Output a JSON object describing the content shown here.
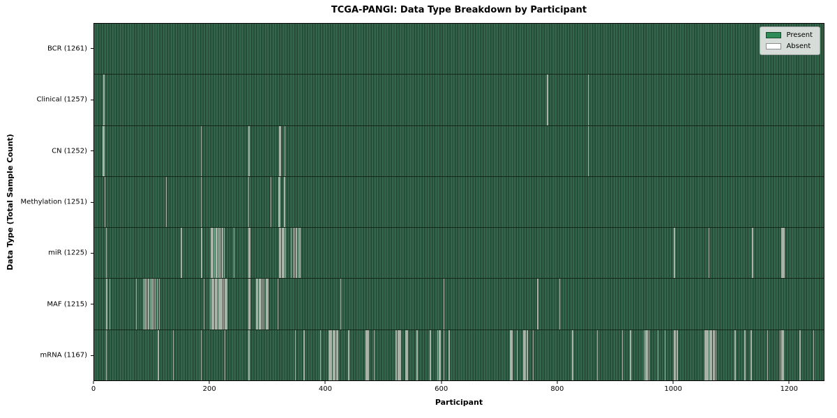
{
  "chart_data": {
    "type": "heatmap",
    "title": "TCGA-PANGI: Data Type Breakdown by Participant",
    "xlabel": "Participant",
    "ylabel": "Data Type (Total Sample Count)",
    "xlim": [
      0,
      1261
    ],
    "x_ticks": [
      0,
      200,
      400,
      600,
      800,
      1000,
      1200
    ],
    "total_participants": 1261,
    "grid": false,
    "legend_position": "upper right",
    "legend_items": [
      {
        "label": "Present",
        "color": "#2e8b57"
      },
      {
        "label": "Absent",
        "color": "#ffffff"
      }
    ],
    "rows": [
      {
        "name": "BCR",
        "label": "BCR (1261)",
        "present_count": 1261,
        "absent_participants": []
      },
      {
        "name": "Clinical",
        "label": "Clinical (1257)",
        "present_count": 1257,
        "absent_participants": [
          16,
          17,
          783,
          853
        ]
      },
      {
        "name": "CN",
        "label": "CN (1252)",
        "present_count": 1252,
        "absent_participants": [
          15,
          16,
          17,
          184,
          267,
          320,
          321,
          329,
          853
        ]
      },
      {
        "name": "Methylation",
        "label": "Methylation (1251)",
        "present_count": 1251,
        "absent_participants": [
          18,
          124,
          184,
          266,
          305,
          318,
          319,
          320,
          328,
          329
        ]
      },
      {
        "name": "miR",
        "label": "miR (1225)",
        "present_count": 1225,
        "absent_participants": [
          20,
          150,
          185,
          201,
          203,
          205,
          207,
          210,
          212,
          215,
          218,
          221,
          224,
          241,
          267,
          268,
          320,
          322,
          324,
          326,
          328,
          330,
          340,
          343,
          346,
          349,
          352,
          355,
          1002,
          1062,
          1137,
          1188,
          1189,
          1190,
          1191,
          1192
        ]
      },
      {
        "name": "MAF",
        "label": "MAF (1215)",
        "present_count": 1215,
        "absent_participants": [
          20,
          21,
          26,
          72,
          84,
          87,
          90,
          93,
          96,
          99,
          102,
          105,
          108,
          112,
          189,
          200,
          202,
          204,
          206,
          208,
          210,
          212,
          214,
          216,
          218,
          220,
          223,
          226,
          228,
          267,
          268,
          280,
          282,
          284,
          286,
          288,
          290,
          293,
          296,
          298,
          300,
          317,
          425,
          604,
          766,
          804
        ]
      },
      {
        "name": "mRNA",
        "label": "mRNA (1167)",
        "present_count": 1167,
        "absent_participants": [
          20,
          110,
          136,
          184,
          225,
          267,
          347,
          362,
          390,
          405,
          406,
          408,
          410,
          412,
          414,
          416,
          418,
          420,
          439,
          440,
          469,
          470,
          471,
          472,
          473,
          483,
          521,
          522,
          524,
          526,
          528,
          529,
          538,
          539,
          540,
          541,
          557,
          558,
          580,
          581,
          593,
          595,
          597,
          598,
          604,
          613,
          718,
          719,
          720,
          721,
          722,
          730,
          742,
          743,
          745,
          747,
          748,
          758,
          826,
          869,
          912,
          926,
          950,
          952,
          954,
          956,
          958,
          974,
          986,
          1002,
          1004,
          1007,
          1055,
          1057,
          1059,
          1061,
          1063,
          1065,
          1067,
          1069,
          1071,
          1074,
          1107,
          1123,
          1124,
          1135,
          1163,
          1185,
          1187,
          1189,
          1191,
          1219,
          1220,
          1243
        ]
      }
    ]
  },
  "colors": {
    "present": "#2e8b57",
    "absent": "#ffffff",
    "stripe_light": "#34664d",
    "stripe_dark": "#234731",
    "absent_line": "#a8b2a7",
    "row_separator": "#14251a",
    "spine": "#000000",
    "legend_bg": "#d6dcd7",
    "legend_border": "#aaaaaa",
    "text": "#000000"
  }
}
